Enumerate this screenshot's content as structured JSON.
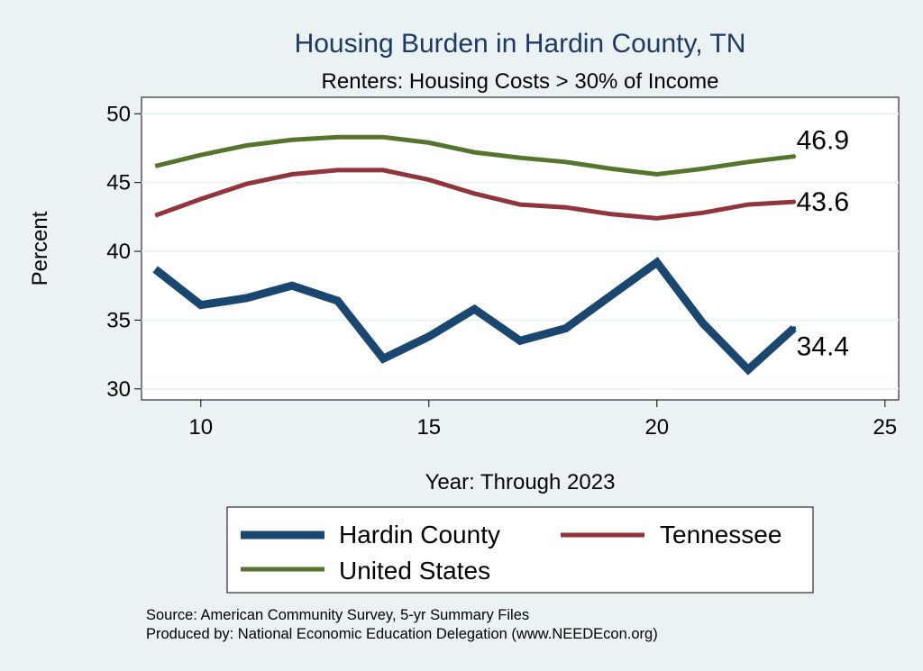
{
  "chart_data": {
    "type": "line",
    "title": "Housing Burden in Hardin County, TN",
    "subtitle": "Renters: Housing Costs > 30% of Income",
    "xlabel": "Year: Through 2023",
    "ylabel": "Percent",
    "xlim": [
      8.7,
      25.3
    ],
    "ylim": [
      29.2,
      51.2
    ],
    "xticks": [
      10,
      15,
      20,
      25
    ],
    "yticks": [
      30,
      35,
      40,
      45,
      50
    ],
    "grid": true,
    "series": [
      {
        "name": "Hardin County",
        "color": "#1a476f",
        "x": [
          9,
          10,
          11,
          12,
          13,
          14,
          15,
          16,
          17,
          18,
          19,
          20,
          21,
          22,
          23
        ],
        "values": [
          38.7,
          36.1,
          36.6,
          37.5,
          36.4,
          32.2,
          33.8,
          35.8,
          33.5,
          34.4,
          36.8,
          39.2,
          34.8,
          31.4,
          34.4
        ],
        "end_label": "34.4"
      },
      {
        "name": "Tennessee",
        "color": "#90353b",
        "x": [
          9,
          10,
          11,
          12,
          13,
          14,
          15,
          16,
          17,
          18,
          19,
          20,
          21,
          22,
          23
        ],
        "values": [
          42.6,
          43.8,
          44.9,
          45.6,
          45.9,
          45.9,
          45.2,
          44.2,
          43.4,
          43.2,
          42.7,
          42.4,
          42.8,
          43.4,
          43.6
        ],
        "end_label": "43.6"
      },
      {
        "name": "United States",
        "color": "#55752f",
        "x": [
          9,
          10,
          11,
          12,
          13,
          14,
          15,
          16,
          17,
          18,
          19,
          20,
          21,
          22,
          23
        ],
        "values": [
          46.2,
          47.0,
          47.7,
          48.1,
          48.3,
          48.3,
          47.9,
          47.2,
          46.8,
          46.5,
          46.0,
          45.6,
          46.0,
          46.5,
          46.9
        ],
        "end_label": "46.9"
      }
    ],
    "legend": {
      "position": "bottom",
      "entries": [
        "Hardin County",
        "Tennessee",
        "United States"
      ]
    }
  },
  "notes": {
    "source": "Source: American Community Survey, 5-yr Summary Files",
    "produced_by": "Produced by: National Economic Education Delegation (www.NEEDEcon.org)"
  }
}
